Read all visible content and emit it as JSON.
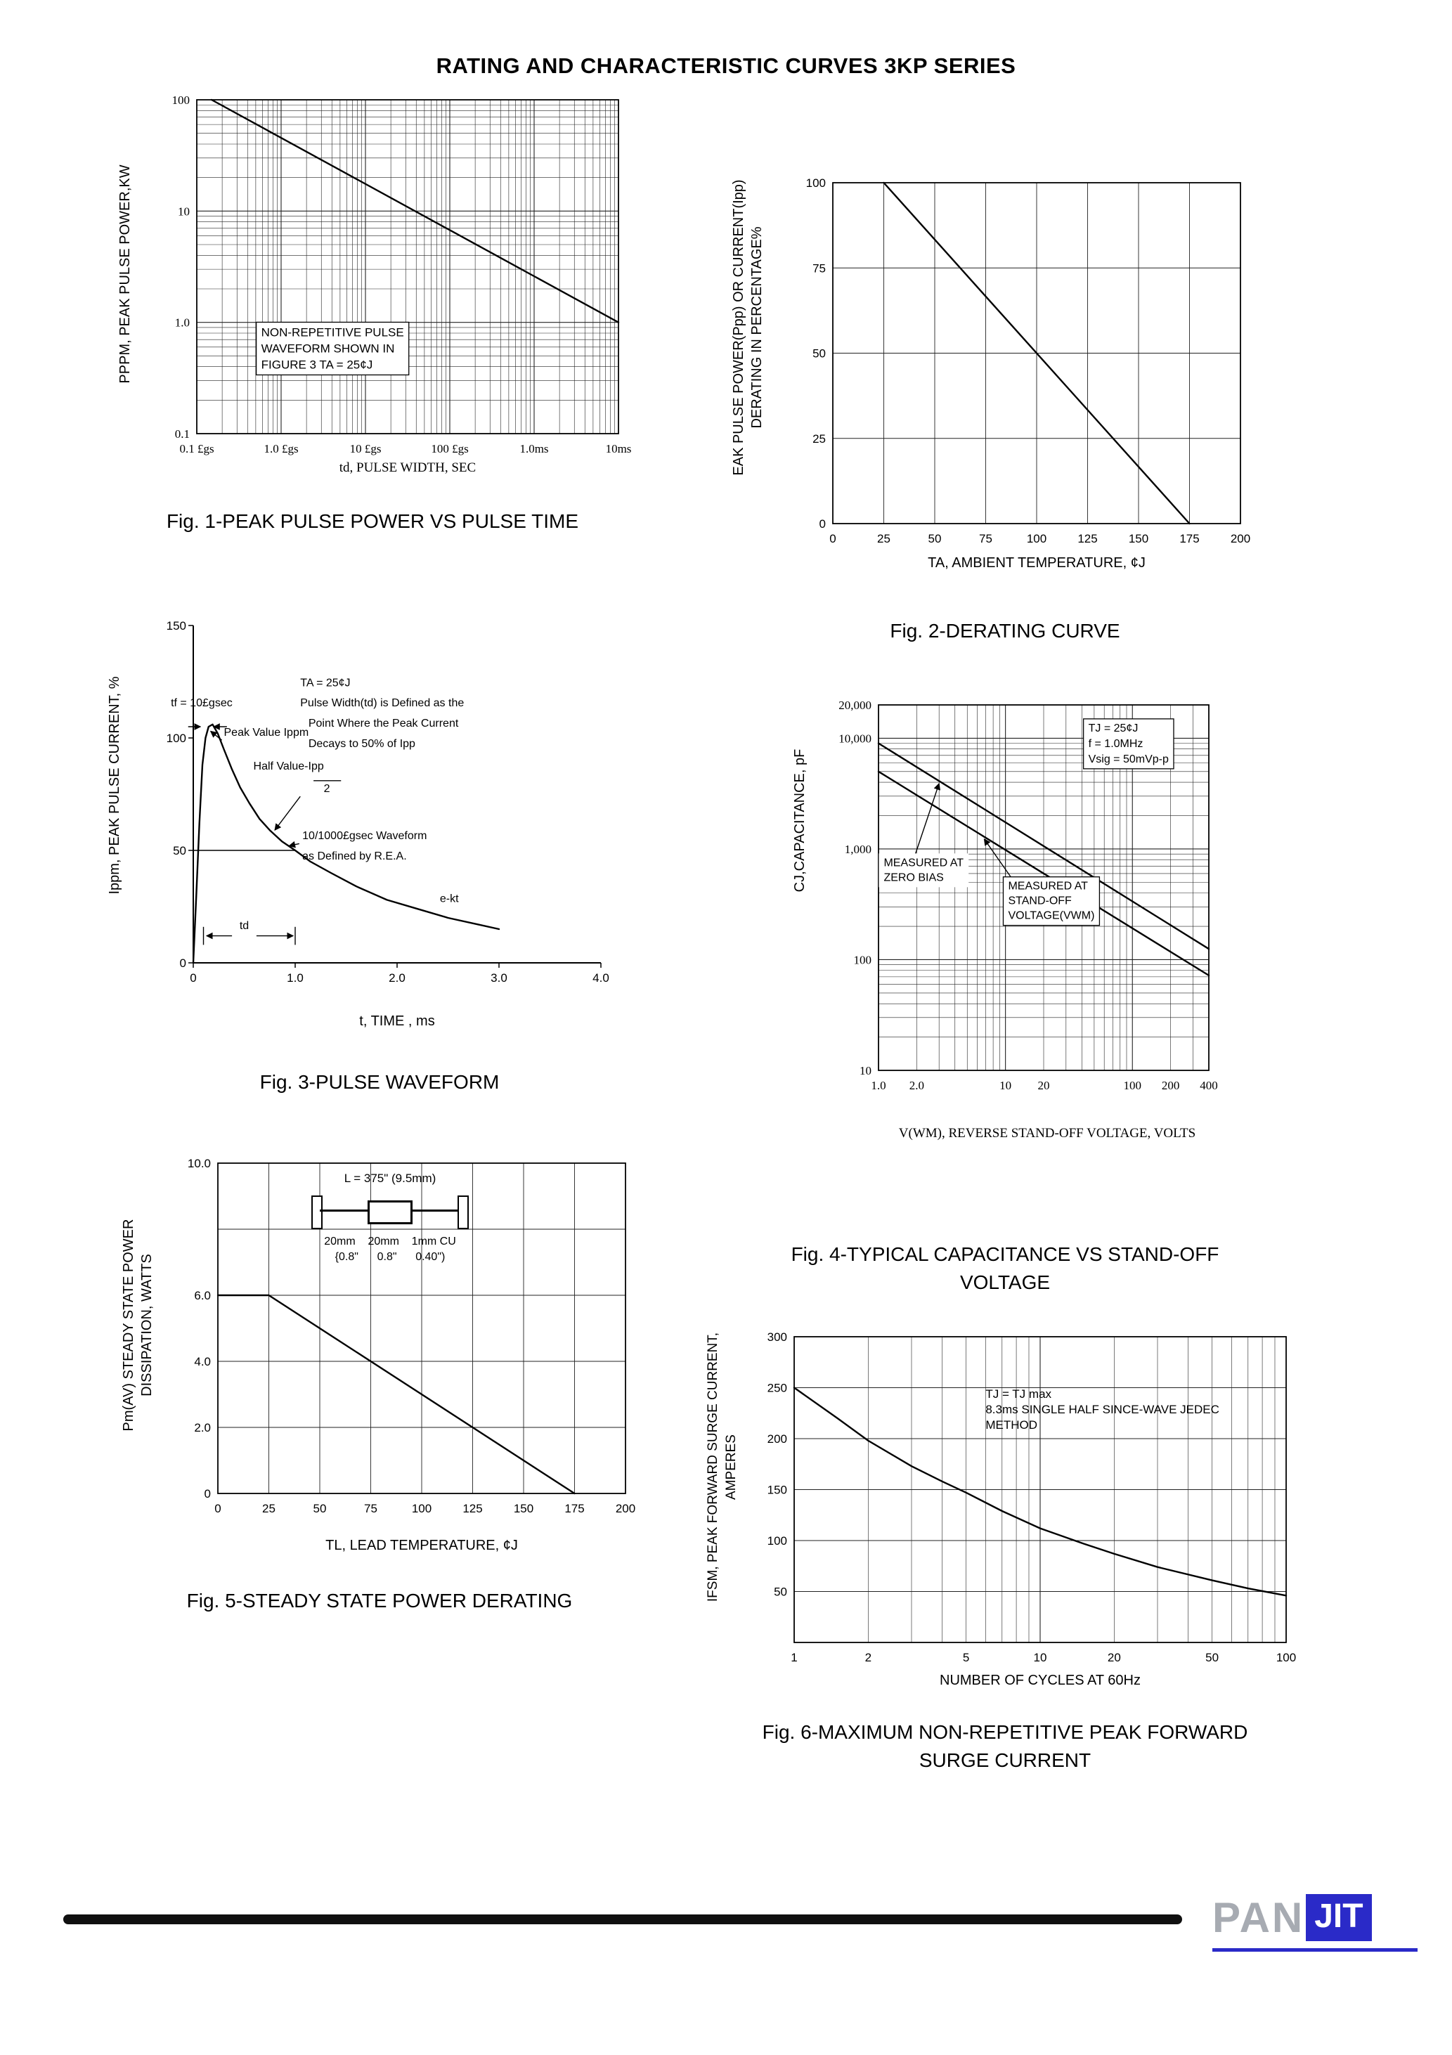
{
  "page": {
    "title": "RATING AND CHARACTERISTIC CURVES 3KP SERIES"
  },
  "footer": {
    "pan": "PAN",
    "jit": "JIT"
  },
  "chart_data": [
    {
      "id": "fig1",
      "type": "line",
      "caption": "Fig. 1-PEAK PULSE POWER VS PULSE TIME",
      "xlabel": "td, PULSE WIDTH, SEC",
      "ylabel": "PPPM, PEAK PULSE POWER,KW",
      "size": [
        690,
        535
      ],
      "margins": {
        "l": 70,
        "t": 14,
        "r": 20,
        "b": 46
      },
      "serif_ticks": true,
      "x": {
        "scale": "log",
        "min": 1e-07,
        "max": 0.01,
        "ticks": [
          {
            "v": 1e-07,
            "label": "0.1 £gs"
          },
          {
            "v": 1e-06,
            "label": "1.0 £gs"
          },
          {
            "v": 1e-05,
            "label": "10 £gs"
          },
          {
            "v": 0.0001,
            "label": "100 £gs"
          },
          {
            "v": 0.001,
            "label": "1.0ms"
          },
          {
            "v": 0.01,
            "label": "10ms"
          }
        ]
      },
      "y": {
        "scale": "log",
        "min": 0.1,
        "max": 100,
        "ticks": [
          {
            "v": 100,
            "label": "100"
          },
          {
            "v": 10,
            "label": "10"
          },
          {
            "v": 1,
            "label": "1.0"
          },
          {
            "v": 0.1,
            "label": "0.1"
          }
        ]
      },
      "series": [
        {
          "name": "peak-pulse-power",
          "points": [
            [
              1.5e-07,
              100
            ],
            [
              0.01,
              1.0
            ]
          ]
        }
      ],
      "labels": [
        {
          "x": 5.8e-07,
          "y": 0.75,
          "anchor": "start",
          "font": 17,
          "line_h": 23,
          "boxed": true,
          "lines": [
            "NON-REPETITIVE PULSE",
            "WAVEFORM SHOWN IN",
            "FIGURE 3 TA = 25¢J"
          ]
        }
      ]
    },
    {
      "id": "fig2",
      "type": "line",
      "caption": "Fig. 2-DERATING CURVE",
      "xlabel": "TA, AMBIENT TEMPERATURE, ¢J",
      "ylabel_lines": [
        "EAK PULSE POWER(Ppp) OR CURRENT(Ipp)",
        "DERATING IN PERCENTAGE%"
      ],
      "size": [
        720,
        545
      ],
      "margins": {
        "l": 85,
        "t": 15,
        "r": 55,
        "b": 45
      },
      "x": {
        "scale": "linear",
        "min": 0,
        "max": 200,
        "grid_step": 25,
        "ticks": [
          {
            "v": 0,
            "label": "0"
          },
          {
            "v": 25,
            "label": "25"
          },
          {
            "v": 50,
            "label": "50"
          },
          {
            "v": 75,
            "label": "75"
          },
          {
            "v": 100,
            "label": "100"
          },
          {
            "v": 125,
            "label": "125"
          },
          {
            "v": 150,
            "label": "150"
          },
          {
            "v": 175,
            "label": "175"
          },
          {
            "v": 200,
            "label": "200"
          }
        ]
      },
      "y": {
        "scale": "linear",
        "min": 0,
        "max": 100,
        "grid_step": 25,
        "ticks": [
          {
            "v": 0,
            "label": "0"
          },
          {
            "v": 25,
            "label": "25"
          },
          {
            "v": 50,
            "label": "50"
          },
          {
            "v": 75,
            "label": "75"
          },
          {
            "v": 100,
            "label": "100"
          }
        ]
      },
      "series": [
        {
          "name": "derating",
          "points": [
            [
              25,
              100
            ],
            [
              175,
              0
            ]
          ]
        }
      ]
    },
    {
      "id": "fig3",
      "type": "line",
      "caption": "Fig. 3-PULSE WAVEFORM",
      "xlabel": "t, TIME , ms",
      "ylabel": "Ippm, PEAK PULSE CURRENT, %",
      "size": [
        700,
        560
      ],
      "margins": {
        "l": 75,
        "t": 25,
        "r": 45,
        "b": 55
      },
      "frame": "LB",
      "tick_marks": true,
      "x": {
        "scale": "linear",
        "min": 0,
        "max": 4,
        "grid": "none",
        "ticks": [
          {
            "v": 0,
            "label": "0"
          },
          {
            "v": 1,
            "label": "1.0"
          },
          {
            "v": 2,
            "label": "2.0"
          },
          {
            "v": 3,
            "label": "3.0"
          },
          {
            "v": 4,
            "label": "4.0"
          }
        ]
      },
      "y": {
        "scale": "linear",
        "min": 0,
        "max": 150,
        "grid": "none",
        "ticks": [
          {
            "v": 0,
            "label": "0"
          },
          {
            "v": 50,
            "label": "50"
          },
          {
            "v": 100,
            "label": "100"
          },
          {
            "v": 150,
            "label": "150"
          }
        ]
      },
      "series": [
        {
          "name": "pulse-waveform",
          "points": [
            [
              0,
              0
            ],
            [
              0.03,
              30
            ],
            [
              0.06,
              62
            ],
            [
              0.09,
              88
            ],
            [
              0.12,
              100
            ],
            [
              0.15,
              105
            ],
            [
              0.19,
              106
            ],
            [
              0.24,
              102
            ],
            [
              0.3,
              95
            ],
            [
              0.38,
              86
            ],
            [
              0.46,
              78
            ],
            [
              0.55,
              71
            ],
            [
              0.65,
              64
            ],
            [
              0.75,
              59
            ],
            [
              0.87,
              54
            ],
            [
              1.0,
              50
            ],
            [
              1.15,
              45
            ],
            [
              1.35,
              40
            ],
            [
              1.6,
              34
            ],
            [
              1.9,
              28
            ],
            [
              2.2,
              24
            ],
            [
              2.5,
              20
            ],
            [
              2.8,
              17
            ],
            [
              3.0,
              15
            ]
          ]
        }
      ],
      "labels": [
        {
          "x": 1.05,
          "y": 123,
          "anchor": "start",
          "font": 16,
          "lines": [
            "TA = 25¢J"
          ]
        },
        {
          "x": -0.22,
          "y": 114,
          "anchor": "start",
          "font": 16,
          "lines": [
            "tf = 10£gsec"
          ]
        },
        {
          "x": 1.05,
          "y": 114,
          "anchor": "start",
          "font": 16,
          "lines": [
            "Pulse Width(td) is Defined as the"
          ]
        },
        {
          "x": 1.13,
          "y": 105,
          "anchor": "start",
          "font": 16,
          "lines": [
            "Point Where the Peak Current"
          ]
        },
        {
          "x": 1.13,
          "y": 96,
          "anchor": "start",
          "font": 16,
          "lines": [
            "Decays to 50% of Ipp"
          ]
        },
        {
          "x": 0.3,
          "y": 101,
          "anchor": "start",
          "font": 16,
          "lines": [
            "Peak Value Ippm"
          ]
        },
        {
          "x": 0.59,
          "y": 86,
          "anchor": "start",
          "font": 16,
          "lines": [
            "Half Value-Ipp"
          ]
        },
        {
          "x": 1.28,
          "y": 76,
          "anchor": "start",
          "font": 16,
          "lines": [
            "2"
          ]
        },
        {
          "x": 1.07,
          "y": 55,
          "anchor": "start",
          "font": 16,
          "lines": [
            "10/1000£gsec Waveform"
          ]
        },
        {
          "x": 1.07,
          "y": 46,
          "anchor": "start",
          "font": 16,
          "lines": [
            "as Defined by R.E.A."
          ]
        },
        {
          "x": 2.42,
          "y": 27,
          "anchor": "start",
          "font": 16,
          "lines": [
            "e-kt"
          ]
        },
        {
          "x": 0.5,
          "y": 15,
          "anchor": "middle",
          "font": 16,
          "lines": [
            "td"
          ]
        }
      ],
      "leaders": [
        {
          "x1": 0.28,
          "y1": 99,
          "x2": 0.17,
          "y2": 103,
          "arrow": true
        },
        {
          "x1": 1.05,
          "y1": 74,
          "x2": 0.8,
          "y2": 59,
          "arrow": true
        },
        {
          "x1": 1.04,
          "y1": 53,
          "x2": 0.94,
          "y2": 52,
          "arrow": true
        },
        {
          "x1": -0.05,
          "y1": 105,
          "x2": 0.07,
          "y2": 105,
          "arrow": true
        },
        {
          "x1": 0.33,
          "y1": 105,
          "x2": 0.2,
          "y2": 105,
          "arrow": true
        },
        {
          "x1": 0.38,
          "y1": 12,
          "x2": 0.13,
          "y2": 12,
          "arrow": true
        },
        {
          "x1": 0.62,
          "y1": 12,
          "x2": 0.98,
          "y2": 12,
          "arrow": true
        },
        {
          "x1": 1.18,
          "y1": 81,
          "x2": 1.45,
          "y2": 81,
          "arrow": false
        },
        {
          "x1": 0,
          "y1": 50,
          "x2": 1.0,
          "y2": 50,
          "arrow": false
        },
        {
          "x1": 0.1,
          "y1": 8,
          "x2": 0.1,
          "y2": 16,
          "arrow": false
        },
        {
          "x1": 1.0,
          "y1": 8,
          "x2": 1.0,
          "y2": 16,
          "arrow": false
        }
      ]
    },
    {
      "id": "fig4",
      "type": "line",
      "caption_line1": "Fig. 4-TYPICAL CAPACITANCE VS STAND-OFF",
      "caption_line2": "VOLTAGE",
      "xlabel": "V(WM), REVERSE STAND-OFF VOLTAGE, VOLTS",
      "ylabel": "CJ,CAPACITANCE, pF",
      "size": [
        620,
        615
      ],
      "margins": {
        "l": 80,
        "t": 25,
        "r": 70,
        "b": 70
      },
      "serif_ticks": true,
      "x": {
        "scale": "log",
        "min": 1,
        "max": 400,
        "ticks": [
          {
            "v": 1,
            "label": "1.0"
          },
          {
            "v": 2,
            "label": "2.0"
          },
          {
            "v": 10,
            "label": "10"
          },
          {
            "v": 20,
            "label": "20"
          },
          {
            "v": 100,
            "label": "100"
          },
          {
            "v": 200,
            "label": "200"
          },
          {
            "v": 400,
            "label": "400"
          }
        ]
      },
      "y": {
        "scale": "log",
        "min": 10,
        "max": 20000,
        "ticks": [
          {
            "v": 10,
            "label": "10"
          },
          {
            "v": 100,
            "label": "100"
          },
          {
            "v": 1000,
            "label": "1,000"
          },
          {
            "v": 10000,
            "label": "10,000"
          },
          {
            "v": 20000,
            "label": "20,000"
          }
        ]
      },
      "series": [
        {
          "name": "zero-bias",
          "points": [
            [
              1,
              9000
            ],
            [
              400,
              125
            ]
          ]
        },
        {
          "name": "stand-off-voltage",
          "points": [
            [
              1,
              5000
            ],
            [
              400,
              72
            ]
          ]
        }
      ],
      "labels": [
        {
          "x": 45,
          "y": 11500,
          "anchor": "start",
          "font": 16,
          "line_h": 22,
          "boxed": true,
          "lines": [
            "TJ = 25¢J",
            "f = 1.0MHz",
            "Vsig = 50mVp-p"
          ]
        },
        {
          "x": 1.1,
          "y": 700,
          "anchor": "start",
          "font": 16,
          "line_h": 21,
          "bg": true,
          "lines": [
            "MEASURED AT",
            "ZERO BIAS"
          ]
        },
        {
          "x": 10.5,
          "y": 430,
          "anchor": "start",
          "font": 16,
          "line_h": 21,
          "boxed": true,
          "lines": [
            "MEASURED AT",
            "STAND-OFF",
            "VOLTAGE(VWM)"
          ]
        }
      ],
      "leaders": [
        {
          "x1": 1.9,
          "y1": 820,
          "x2": 3.0,
          "y2": 3900,
          "arrow": true
        },
        {
          "x1": 11,
          "y1": 560,
          "x2": 6.8,
          "y2": 1230,
          "arrow": true
        }
      ]
    },
    {
      "id": "fig5",
      "type": "line",
      "caption": "Fig. 5-STEADY STATE POWER DERATING",
      "xlabel": "TL, LEAD TEMPERATURE, ¢J",
      "ylabel_lines": [
        "Pm(AV) STEADY STATE POWER",
        "DISSIPATION, WATTS"
      ],
      "size": [
        700,
        555
      ],
      "margins": {
        "l": 80,
        "t": 25,
        "r": 40,
        "b": 60
      },
      "x": {
        "scale": "linear",
        "min": 0,
        "max": 200,
        "grid_step": 25,
        "ticks": [
          {
            "v": 0,
            "label": "0"
          },
          {
            "v": 25,
            "label": "25"
          },
          {
            "v": 50,
            "label": "50"
          },
          {
            "v": 75,
            "label": "75"
          },
          {
            "v": 100,
            "label": "100"
          },
          {
            "v": 125,
            "label": "125"
          },
          {
            "v": 150,
            "label": "150"
          },
          {
            "v": 175,
            "label": "175"
          },
          {
            "v": 200,
            "label": "200"
          }
        ]
      },
      "y": {
        "scale": "linear",
        "min": 0,
        "max": 10,
        "grid_values": [
          2,
          4,
          6,
          8
        ],
        "ticks": [
          {
            "v": 0,
            "label": "0"
          },
          {
            "v": 2,
            "label": "2.0"
          },
          {
            "v": 4,
            "label": "4.0"
          },
          {
            "v": 6,
            "label": "6.0"
          },
          {
            "v": 10,
            "label": "10.0"
          }
        ]
      },
      "series": [
        {
          "name": "steady-state-power",
          "points": [
            [
              0,
              6
            ],
            [
              25,
              6
            ],
            [
              175,
              0
            ]
          ]
        }
      ],
      "inset": {
        "dim_label": "L = 375\" (9.5mm)",
        "row1": "20mm    20mm    1mm CU",
        "row2": "{0.8\"      0.8\"      0.40\")"
      }
    },
    {
      "id": "fig6",
      "type": "line",
      "caption_line1": "Fig. 6-MAXIMUM NON-REPETITIVE PEAK FORWARD",
      "caption_line2": "SURGE CURRENT",
      "xlabel": "NUMBER OF CYCLES AT 60Hz",
      "ylabel_lines": [
        "IFSM, PEAK FORWARD SURGE CURRENT,",
        "AMPERES"
      ],
      "size": [
        800,
        510
      ],
      "margins": {
        "l": 70,
        "t": 20,
        "r": 30,
        "b": 55
      },
      "x": {
        "scale": "log",
        "min": 1,
        "max": 100,
        "ticks": [
          {
            "v": 1,
            "label": "1"
          },
          {
            "v": 2,
            "label": "2"
          },
          {
            "v": 5,
            "label": "5"
          },
          {
            "v": 10,
            "label": "10"
          },
          {
            "v": 20,
            "label": "20"
          },
          {
            "v": 50,
            "label": "50"
          },
          {
            "v": 100,
            "label": "100"
          }
        ]
      },
      "y": {
        "scale": "linear",
        "min": 0,
        "max": 300,
        "grid_step": 50,
        "ticks": [
          {
            "v": 50,
            "label": "50"
          },
          {
            "v": 100,
            "label": "100"
          },
          {
            "v": 150,
            "label": "150"
          },
          {
            "v": 200,
            "label": "200"
          },
          {
            "v": 250,
            "label": "250"
          },
          {
            "v": 300,
            "label": "300"
          }
        ]
      },
      "series": [
        {
          "name": "surge-current",
          "points": [
            [
              1,
              250
            ],
            [
              1.5,
              220
            ],
            [
              2,
              198
            ],
            [
              3,
              173
            ],
            [
              4,
              158
            ],
            [
              5,
              147
            ],
            [
              7,
              129
            ],
            [
              10,
              112
            ],
            [
              15,
              97
            ],
            [
              20,
              87
            ],
            [
              30,
              74
            ],
            [
              50,
              61
            ],
            [
              70,
              53
            ],
            [
              100,
              46
            ]
          ]
        }
      ],
      "labels": [
        {
          "x": 6,
          "y": 240,
          "anchor": "start",
          "font": 17,
          "line_h": 22,
          "lines": [
            "TJ = TJ max",
            "8.3ms SINGLE HALF SINCE-WAVE JEDEC",
            "METHOD"
          ]
        }
      ]
    }
  ]
}
